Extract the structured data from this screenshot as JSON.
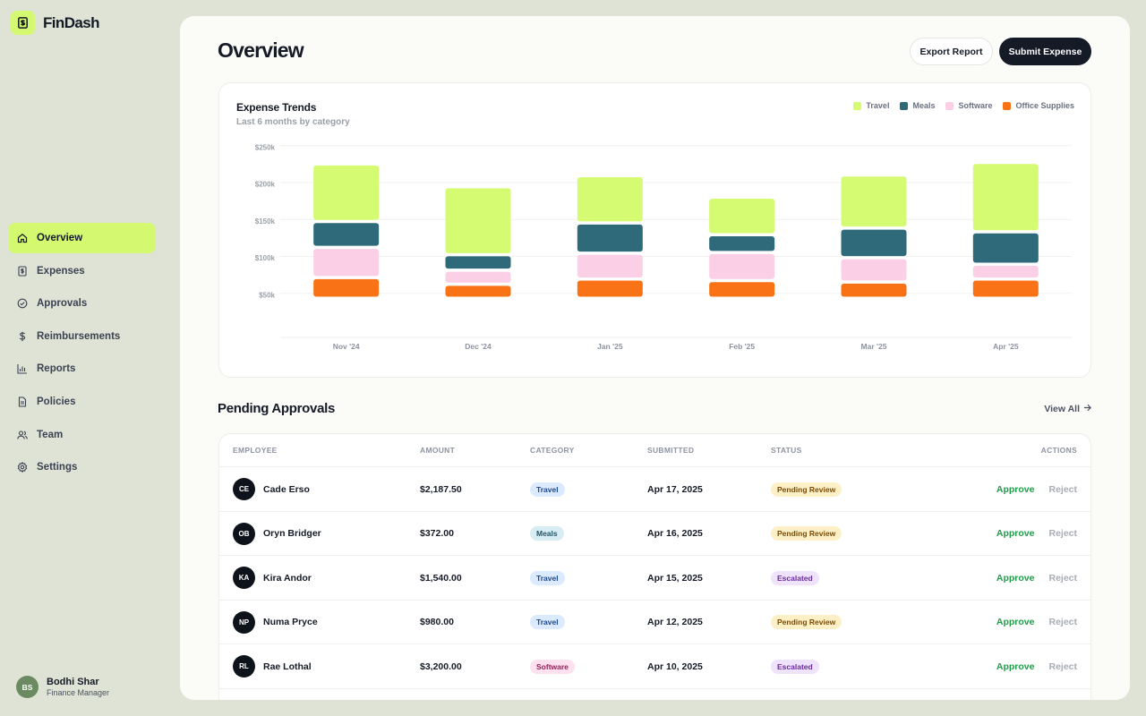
{
  "brand": {
    "name": "FinDash",
    "icon": "dollar-receipt-icon",
    "accent": "#d4f870"
  },
  "sidebar": {
    "items": [
      {
        "label": "Overview",
        "icon": "home-icon",
        "active": true
      },
      {
        "label": "Expenses",
        "icon": "receipt-icon",
        "active": false
      },
      {
        "label": "Approvals",
        "icon": "check-circle-icon",
        "active": false
      },
      {
        "label": "Reimbursements",
        "icon": "dollar-icon",
        "active": false
      },
      {
        "label": "Reports",
        "icon": "bar-chart-icon",
        "active": false
      },
      {
        "label": "Policies",
        "icon": "document-icon",
        "active": false
      },
      {
        "label": "Team",
        "icon": "users-icon",
        "active": false
      },
      {
        "label": "Settings",
        "icon": "gear-icon",
        "active": false
      }
    ],
    "user": {
      "initials": "BS",
      "name": "Bodhi Shar",
      "role": "Finance Manager"
    }
  },
  "header": {
    "title": "Overview",
    "export_label": "Export Report",
    "submit_label": "Submit Expense"
  },
  "chart_card": {
    "title": "Expense Trends",
    "subtitle": "Last 6 months by category"
  },
  "chart_data": {
    "type": "bar",
    "stacked": true,
    "categories": [
      "Nov '24",
      "Dec '24",
      "Jan '25",
      "Feb '25",
      "Mar '25",
      "Apr '25"
    ],
    "series": [
      {
        "name": "Office Supplies",
        "color": "#f97316",
        "values": [
          28,
          19,
          26,
          24,
          22,
          26
        ]
      },
      {
        "name": "Software",
        "color": "#fbd0e6",
        "values": [
          41,
          19,
          35,
          38,
          33,
          20
        ]
      },
      {
        "name": "Meals",
        "color": "#2e6a79",
        "values": [
          35,
          21,
          41,
          24,
          40,
          44
        ]
      },
      {
        "name": "Travel",
        "color": "#d5fb72",
        "values": [
          78,
          92,
          64,
          51,
          72,
          94
        ]
      }
    ],
    "yticks": [
      "$250k",
      "$200k",
      "$150k",
      "$100k",
      "$50k"
    ],
    "ytick_values": [
      250,
      200,
      150,
      100,
      50
    ],
    "ylim": [
      0,
      260
    ],
    "grid": true,
    "legend_position": "top-right",
    "legend_order": [
      "Travel",
      "Meals",
      "Software",
      "Office Supplies"
    ]
  },
  "approvals": {
    "title": "Pending Approvals",
    "view_all_label": "View All",
    "columns": [
      "EMPLOYEE",
      "AMOUNT",
      "CATEGORY",
      "SUBMITTED",
      "STATUS",
      "ACTIONS"
    ],
    "approve_label": "Approve",
    "reject_label": "Reject",
    "rows": [
      {
        "initials": "CE",
        "name": "Cade Erso",
        "amount": "$2,187.50",
        "category": "Travel",
        "submitted": "Apr 17, 2025",
        "status": "Pending Review"
      },
      {
        "initials": "OB",
        "name": "Oryn Bridger",
        "amount": "$372.00",
        "category": "Meals",
        "submitted": "Apr 16, 2025",
        "status": "Pending Review"
      },
      {
        "initials": "KA",
        "name": "Kira Andor",
        "amount": "$1,540.00",
        "category": "Travel",
        "submitted": "Apr 15, 2025",
        "status": "Escalated"
      },
      {
        "initials": "NP",
        "name": "Numa Pryce",
        "amount": "$980.00",
        "category": "Travel",
        "submitted": "Apr 12, 2025",
        "status": "Pending Review"
      },
      {
        "initials": "RL",
        "name": "Rae Lothal",
        "amount": "$3,200.00",
        "category": "Software",
        "submitted": "Apr 10, 2025",
        "status": "Escalated"
      }
    ]
  }
}
